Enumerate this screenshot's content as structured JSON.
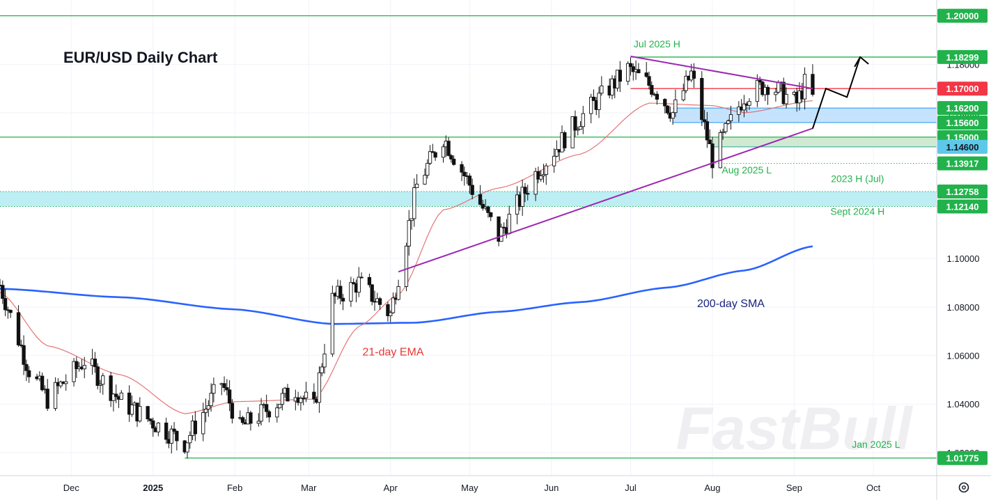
{
  "chart_data": {
    "type": "candlestick",
    "title": "EUR/USD Daily Chart",
    "instrument": "EUR/USD",
    "timeframe": "Daily",
    "x_axis": {
      "tick_labels": [
        "Dec",
        "2025",
        "Feb",
        "Mar",
        "Apr",
        "May",
        "Jun",
        "Jul",
        "Aug",
        "Sep",
        "Oct"
      ],
      "range": [
        "2024-11-04",
        "2025-10-25"
      ]
    },
    "y_axis": {
      "side": "right",
      "range": [
        1.0105,
        1.2065
      ],
      "tick_labels": [
        "1.02000",
        "1.04000",
        "1.06000",
        "1.08000",
        "1.10000",
        "1.16000",
        "1.18000"
      ],
      "tick_values": [
        1.02,
        1.04,
        1.06,
        1.08,
        1.1,
        1.16,
        1.18
      ]
    },
    "grid": true,
    "price_path": [
      {
        "date": "2024-11-04",
        "close": 1.089
      },
      {
        "date": "2024-11-15",
        "close": 1.054
      },
      {
        "date": "2024-11-22",
        "close": 1.042
      },
      {
        "date": "2024-12-06",
        "close": 1.058
      },
      {
        "date": "2024-12-20",
        "close": 1.041
      },
      {
        "date": "2025-01-13",
        "close": 1.024
      },
      {
        "date": "2025-01-27",
        "close": 1.049
      },
      {
        "date": "2025-02-03",
        "close": 1.03
      },
      {
        "date": "2025-02-24",
        "close": 1.046
      },
      {
        "date": "2025-03-03",
        "close": 1.038
      },
      {
        "date": "2025-03-10",
        "close": 1.083
      },
      {
        "date": "2025-03-20",
        "close": 1.09
      },
      {
        "date": "2025-04-01",
        "close": 1.077
      },
      {
        "date": "2025-04-11",
        "close": 1.13
      },
      {
        "date": "2025-04-21",
        "close": 1.15
      },
      {
        "date": "2025-05-12",
        "close": 1.109
      },
      {
        "date": "2025-05-26",
        "close": 1.135
      },
      {
        "date": "2025-06-12",
        "close": 1.158
      },
      {
        "date": "2025-06-30",
        "close": 1.178
      },
      {
        "date": "2025-07-10",
        "close": 1.17
      },
      {
        "date": "2025-07-17",
        "close": 1.16
      },
      {
        "date": "2025-07-24",
        "close": 1.176
      },
      {
        "date": "2025-08-01",
        "close": 1.141
      },
      {
        "date": "2025-08-13",
        "close": 1.167
      },
      {
        "date": "2025-08-22",
        "close": 1.172
      },
      {
        "date": "2025-09-02",
        "close": 1.164
      },
      {
        "date": "2025-09-05",
        "close": 1.172
      },
      {
        "date": "2025-09-08",
        "close": 1.166
      }
    ],
    "ema21_path": [
      {
        "date": "2024-11-04",
        "value": 1.086
      },
      {
        "date": "2024-11-22",
        "value": 1.064
      },
      {
        "date": "2024-12-20",
        "value": 1.052
      },
      {
        "date": "2025-01-13",
        "value": 1.036
      },
      {
        "date": "2025-02-01",
        "value": 1.041
      },
      {
        "date": "2025-03-03",
        "value": 1.042
      },
      {
        "date": "2025-03-20",
        "value": 1.072
      },
      {
        "date": "2025-04-04",
        "value": 1.085
      },
      {
        "date": "2025-04-21",
        "value": 1.12
      },
      {
        "date": "2025-05-12",
        "value": 1.129
      },
      {
        "date": "2025-06-12",
        "value": 1.143
      },
      {
        "date": "2025-07-08",
        "value": 1.164
      },
      {
        "date": "2025-08-01",
        "value": 1.163
      },
      {
        "date": "2025-08-13",
        "value": 1.16
      },
      {
        "date": "2025-09-08",
        "value": 1.165
      }
    ],
    "sma200_path": [
      {
        "date": "2024-11-04",
        "value": 1.0875
      },
      {
        "date": "2024-12-20",
        "value": 1.084
      },
      {
        "date": "2025-02-01",
        "value": 1.079
      },
      {
        "date": "2025-03-10",
        "value": 1.073
      },
      {
        "date": "2025-04-10",
        "value": 1.0735
      },
      {
        "date": "2025-05-12",
        "value": 1.078
      },
      {
        "date": "2025-06-12",
        "value": 1.082
      },
      {
        "date": "2025-07-15",
        "value": 1.088
      },
      {
        "date": "2025-08-13",
        "value": 1.095
      },
      {
        "date": "2025-09-08",
        "value": 1.105
      }
    ],
    "horizontal_levels": [
      {
        "value": 1.2,
        "label": "1.20000",
        "color": "#22b24c",
        "style": "solid"
      },
      {
        "value": 1.18299,
        "label": "1.18299",
        "color": "#22b24c",
        "style": "solid",
        "line_from": "2025-07-01"
      },
      {
        "value": 1.17,
        "label": "1.17000",
        "color": "#f23645",
        "style": "solid",
        "line_from": "2025-07-01"
      },
      {
        "value": 1.162,
        "label": "1.16200",
        "color": "#22b24c",
        "style": "none"
      },
      {
        "value": 1.156,
        "label": "1.15600",
        "color": "#22b24c",
        "style": "none"
      },
      {
        "value": 1.15,
        "label": "1.15000",
        "color": "#22b24c",
        "style": "solid"
      },
      {
        "value": 1.146,
        "label": "1.14600",
        "color": "#5ec8e8",
        "style": "none"
      },
      {
        "value": 1.13917,
        "label": "1.13917",
        "color": "#22b24c",
        "style": "dotted",
        "line_from": "2025-08-01"
      },
      {
        "value": 1.12758,
        "label": "1.12758",
        "color": "#22b24c",
        "style": "dotted"
      },
      {
        "value": 1.1214,
        "label": "1.12140",
        "color": "#22b24c",
        "style": "dotted"
      },
      {
        "value": 1.01775,
        "label": "1.01775",
        "color": "#22b24c",
        "style": "solid",
        "line_from": "2025-01-13"
      }
    ],
    "zones": [
      {
        "from": 1.1214,
        "to": 1.12758,
        "color": "#b2ebf2",
        "start": "2024-11-04"
      },
      {
        "from": 1.156,
        "to": 1.162,
        "color": "#bbdefb",
        "start": "2025-07-17"
      },
      {
        "from": 1.146,
        "to": 1.15,
        "color": "#c8e6c9",
        "start": "2025-08-01"
      }
    ],
    "trendlines": [
      {
        "name": "uptrend",
        "color": "#9c27b0",
        "from": {
          "date": "2025-04-04",
          "value": 1.0945
        },
        "to": {
          "date": "2025-09-08",
          "value": 1.1536
        }
      },
      {
        "name": "downtrend",
        "color": "#9c27b0",
        "from": {
          "date": "2025-07-01",
          "value": 1.1833
        },
        "to": {
          "date": "2025-09-08",
          "value": 1.17
        }
      }
    ],
    "projection_path": [
      {
        "date": "2025-09-08",
        "value": 1.1535
      },
      {
        "date": "2025-09-13",
        "value": 1.17
      },
      {
        "date": "2025-09-21",
        "value": 1.1665
      },
      {
        "date": "2025-09-26",
        "value": 1.183
      }
    ],
    "annotations": [
      {
        "text": "Jul 2025 H",
        "color": "#22b24c",
        "date": "2025-07-11",
        "value": 1.187
      },
      {
        "text": "Aug 2025 L",
        "color": "#22b24c",
        "date": "2025-08-14",
        "value": 1.135
      },
      {
        "text": "2023 H (Jul)",
        "color": "#22b24c",
        "date": "2025-09-25",
        "value": 1.1315
      },
      {
        "text": "Sept 2024 H",
        "color": "#22b24c",
        "date": "2025-09-25",
        "value": 1.118
      },
      {
        "text": "Jan 2025 L",
        "color": "#22b24c",
        "date": "2025-10-02",
        "value": 1.022
      },
      {
        "text": "21-day EMA",
        "color": "#e53935",
        "date": "2025-04-02",
        "value": 1.06
      },
      {
        "text": "200-day SMA",
        "color": "#1a237e",
        "date": "2025-08-08",
        "value": 1.08
      }
    ],
    "watermark": "FastBull",
    "colors": {
      "ema": "#e57373",
      "sma": "#2962ff",
      "candle": "#111111",
      "up_fill": "#ffffff",
      "down_fill": "#111111",
      "trendline": "#9c27b0",
      "level_green": "#22b24c",
      "level_red": "#f23645",
      "level_cyan": "#5ec8e8",
      "grid": "#f0f3fa",
      "axis": "#787b86"
    },
    "settings_icon": "gear-icon"
  }
}
